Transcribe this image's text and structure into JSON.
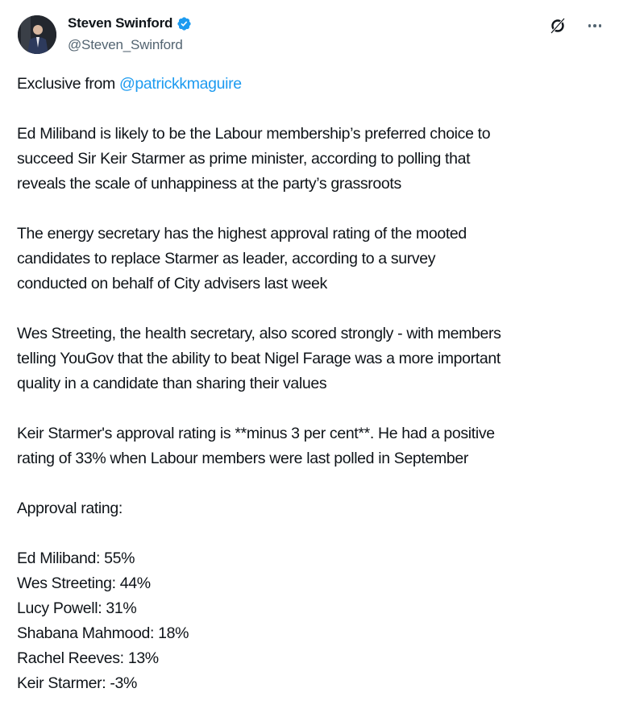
{
  "author": {
    "name": "Steven Swinford",
    "handle": "@Steven_Swinford",
    "verified": true,
    "verified_color": "#1d9bf0"
  },
  "header_icons": [
    "grok-icon",
    "more-icon"
  ],
  "tweet": {
    "intro": "Exclusive from ",
    "mention": "@patrickkmaguire",
    "paragraphs": [
      [
        "Ed Miliband is likely to be the Labour membership’s preferred choice to",
        "succeed Sir Keir Starmer as prime minister, according to polling that",
        "reveals the scale of unhappiness at the party’s grassroots"
      ],
      [
        "The energy secretary has the highest approval rating of the mooted",
        "candidates to replace Starmer as leader, according to a survey",
        "conducted on behalf of City advisers last week"
      ],
      [
        "Wes Streeting, the health secretary, also scored strongly - with members",
        "telling YouGov that the ability to beat Nigel Farage was a more important",
        "quality in a candidate than sharing their values"
      ],
      [
        "Keir Starmer's approval rating is **minus 3 per cent**. He had a positive",
        "rating of 33% when Labour members were last polled in September"
      ],
      [
        "Approval rating:"
      ],
      [
        "Ed Miliband: 55%",
        "Wes Streeting: 44%",
        "Lucy Powell: 31%",
        "Shabana Mahmood: 18%",
        "Rachel Reeves: 13%",
        "Keir Starmer: -3%"
      ]
    ]
  }
}
